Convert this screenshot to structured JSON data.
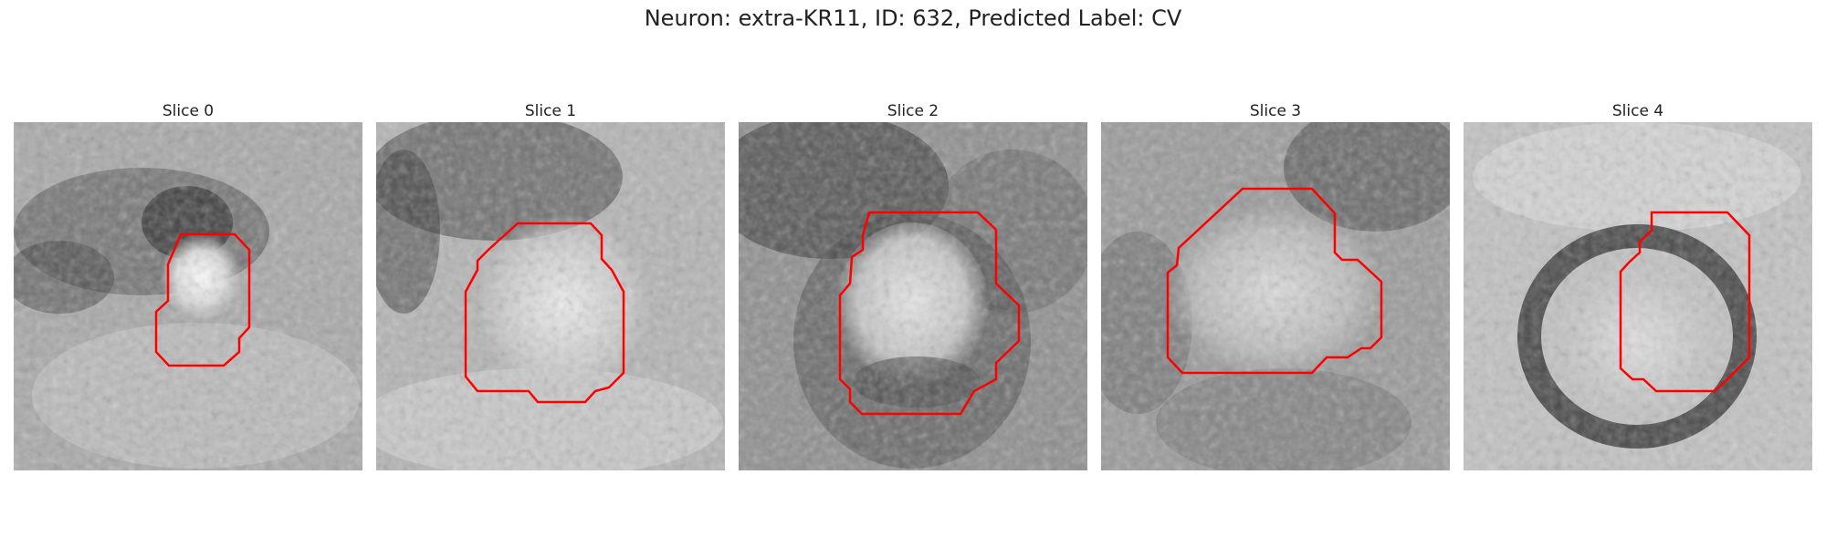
{
  "title": "Neuron: extra-KR11, ID: 632, Predicted Label: CV",
  "outline_color": "#ff0000",
  "panels": [
    {
      "label": "Slice 0"
    },
    {
      "label": "Slice 1"
    },
    {
      "label": "Slice 2"
    },
    {
      "label": "Slice 3"
    },
    {
      "label": "Slice 4"
    }
  ]
}
